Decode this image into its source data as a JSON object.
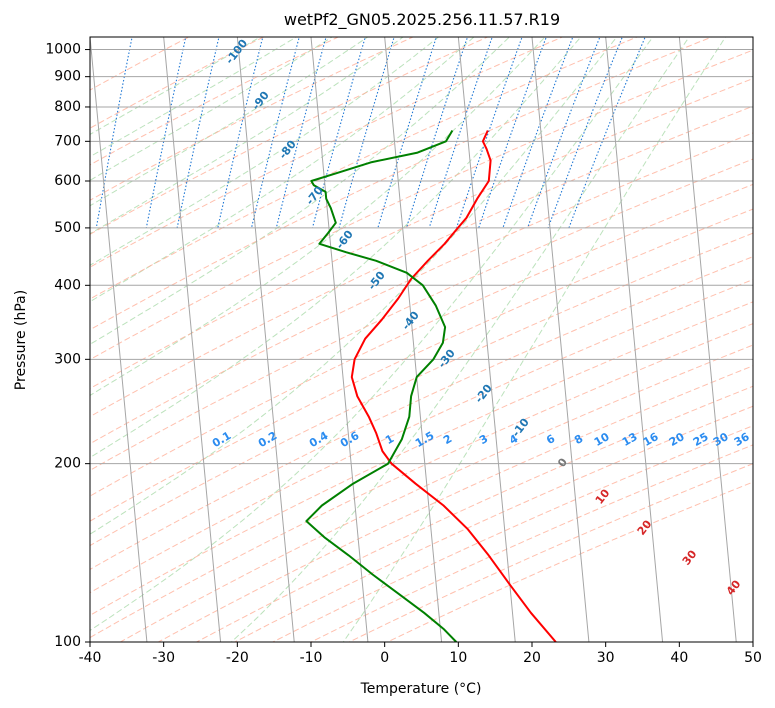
{
  "chart_data": {
    "type": "line",
    "subtype": "skew-t log-p diagram",
    "title": "wetPf2_GN05.2025.256.11.57.R19",
    "xlabel": "Temperature (°C)",
    "ylabel": "Pressure (hPa)",
    "xlim": [
      -40,
      50
    ],
    "ylim": [
      1050,
      100
    ],
    "y_scale": "log",
    "grid": true,
    "x_ticks": [
      -40,
      -30,
      -20,
      -10,
      0,
      10,
      20,
      30,
      40,
      50
    ],
    "y_ticks": [
      1000,
      900,
      800,
      700,
      600,
      500,
      400,
      300,
      200,
      100
    ],
    "series": [
      {
        "color": "#ff0000",
        "points": [
          [
            12.8,
            730
          ],
          [
            12.0,
            700
          ],
          [
            12.4,
            680
          ],
          [
            12.8,
            650
          ],
          [
            12.3,
            600
          ],
          [
            10.5,
            560
          ],
          [
            8.8,
            520
          ],
          [
            7.5,
            500
          ],
          [
            5.5,
            470
          ],
          [
            3.0,
            440
          ],
          [
            0.5,
            410
          ],
          [
            -1.5,
            380
          ],
          [
            -4.0,
            350
          ],
          [
            -6.5,
            325
          ],
          [
            -8.2,
            300
          ],
          [
            -8.8,
            280
          ],
          [
            -8.3,
            260
          ],
          [
            -7.0,
            240
          ],
          [
            -6.2,
            225
          ],
          [
            -5.6,
            210
          ],
          [
            -4.5,
            200
          ],
          [
            -1.5,
            185
          ],
          [
            2.0,
            170
          ],
          [
            5.0,
            155
          ],
          [
            7.5,
            140
          ],
          [
            10.0,
            125
          ],
          [
            12.5,
            112
          ],
          [
            15.5,
            100
          ]
        ]
      },
      {
        "color": "#008000",
        "points": [
          [
            8.0,
            730
          ],
          [
            7.0,
            700
          ],
          [
            3.0,
            670
          ],
          [
            -3.5,
            645
          ],
          [
            -8.0,
            620
          ],
          [
            -11.8,
            600
          ],
          [
            -11.5,
            590
          ],
          [
            -10.0,
            575
          ],
          [
            -10.0,
            560
          ],
          [
            -9.5,
            540
          ],
          [
            -9.0,
            510
          ],
          [
            -10.2,
            490
          ],
          [
            -11.5,
            470
          ],
          [
            -8.0,
            455
          ],
          [
            -4.0,
            440
          ],
          [
            0.0,
            420
          ],
          [
            2.0,
            400
          ],
          [
            3.5,
            370
          ],
          [
            4.5,
            340
          ],
          [
            4.0,
            320
          ],
          [
            2.5,
            300
          ],
          [
            0.0,
            280
          ],
          [
            -1.0,
            260
          ],
          [
            -1.5,
            240
          ],
          [
            -2.8,
            220
          ],
          [
            -5.0,
            200
          ],
          [
            -10.0,
            185
          ],
          [
            -14.5,
            170
          ],
          [
            -16.8,
            160
          ],
          [
            -14.5,
            150
          ],
          [
            -11.5,
            140
          ],
          [
            -8.5,
            130
          ],
          [
            -5.0,
            120
          ],
          [
            -2.0,
            112
          ],
          [
            0.5,
            105
          ],
          [
            2.0,
            100
          ]
        ]
      }
    ],
    "dry_adiabat_labels": [
      "-100",
      "-90",
      "-80",
      "-70",
      "-60",
      "-50",
      "-40",
      "-30",
      "-20",
      "-10",
      "0",
      "10",
      "20",
      "30",
      "40"
    ],
    "mixing_ratio_labels": [
      "0.1",
      "0.2",
      "0.4",
      "0.6",
      "1",
      "1.5",
      "2",
      "3",
      "4",
      "6",
      "8",
      "10",
      "13",
      "16",
      "20",
      "25",
      "30",
      "36"
    ],
    "colors": {
      "temperature": "#ff0000",
      "dewpoint": "#008000",
      "isotherm": "#a6a6a6",
      "dry_adiabat": "#ffb09a",
      "moist_adiabat": "#8fcf8f",
      "mixing_ratio": "#1f77d4",
      "label_blue": "#1f77b4",
      "label_red": "#d62728"
    }
  }
}
